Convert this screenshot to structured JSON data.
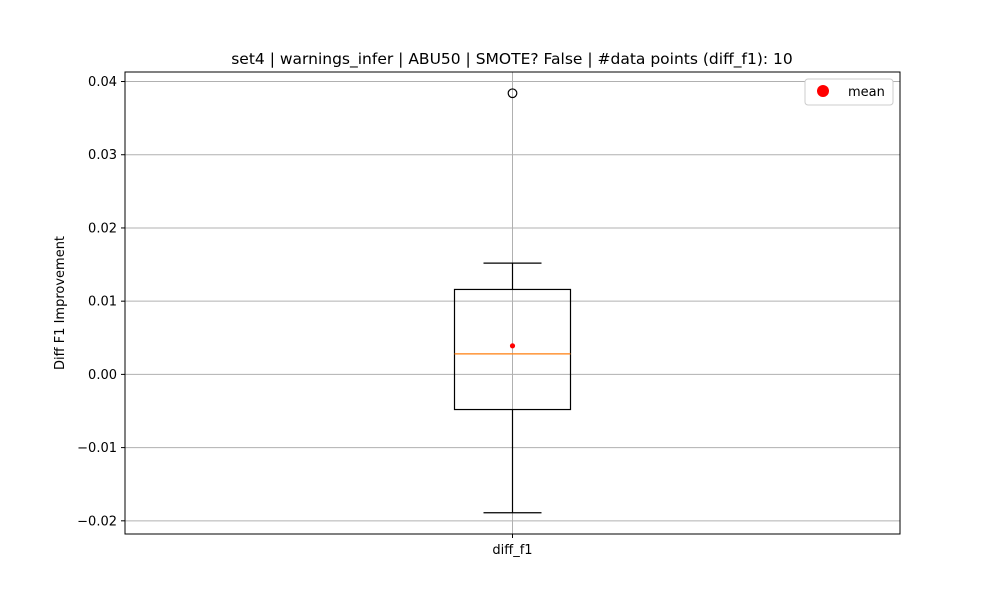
{
  "chart_data": {
    "type": "box",
    "title": "set4 | warnings_infer | ABU50 | SMOTE? False | #data points (diff_f1): 10",
    "xlabel": "",
    "ylabel": "Diff F1 Improvement",
    "categories": [
      "diff_f1"
    ],
    "ylim": [
      -0.0218,
      0.0413
    ],
    "yticks": [
      -0.02,
      -0.01,
      0.0,
      0.01,
      0.02,
      0.03,
      0.04
    ],
    "ytick_labels": [
      "−0.02",
      "−0.01",
      "0.00",
      "0.01",
      "0.02",
      "0.03",
      "0.04"
    ],
    "grid": true,
    "legend": {
      "position": "top-right",
      "entries": [
        {
          "label": "mean",
          "color": "#ff0000"
        }
      ]
    },
    "boxes": [
      {
        "name": "diff_f1",
        "whisker_low": -0.0189,
        "q1": -0.0048,
        "median": 0.0028,
        "q3": 0.0116,
        "whisker_high": 0.0152,
        "mean": 0.0039,
        "outliers": [
          0.0384
        ]
      }
    ],
    "colors": {
      "box": "#000000",
      "median": "#ff7f0e",
      "mean": "#ff0000",
      "grid": "#b0b0b0"
    }
  }
}
